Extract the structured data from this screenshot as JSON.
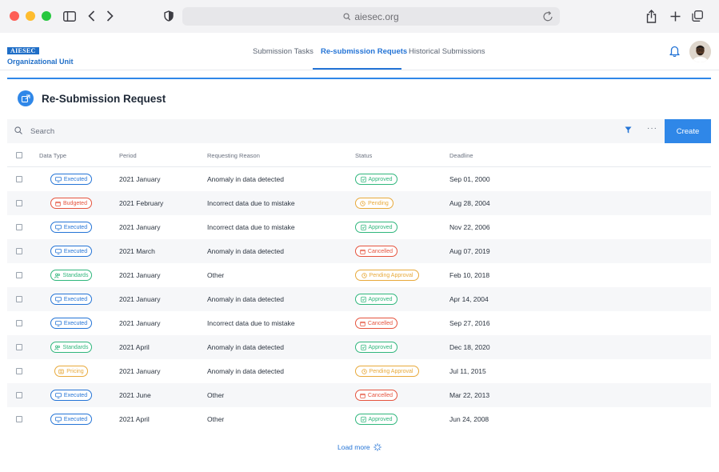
{
  "browser": {
    "url": "aiesec.org",
    "icons": [
      "sidebar-icon",
      "back-icon",
      "forward-icon",
      "shield-icon",
      "lock-icon",
      "reload-icon",
      "share-icon",
      "new-tab-icon",
      "tabs-icon"
    ]
  },
  "header": {
    "logo_badge": "AIESEC",
    "logo_sub": "Organizational Unit",
    "tabs": [
      {
        "label": "Submission Tasks",
        "active": false
      },
      {
        "label": "Re-submission Requets",
        "active": true
      },
      {
        "label": "Historical Submissions",
        "active": false
      }
    ]
  },
  "main": {
    "title": "Re-Submission Request",
    "search_placeholder": "Search",
    "create_label": "Create",
    "load_more_label": "Load more",
    "columns": [
      "Data Type",
      "Period",
      "Requesting Reason",
      "Status",
      "Deadline"
    ],
    "rows": [
      {
        "type": "Executed",
        "period": "2021 January",
        "reason": "Anomaly in data detected",
        "status": "Approved",
        "deadline": "Sep 01, 2000"
      },
      {
        "type": "Budgeted",
        "period": "2021 February",
        "reason": "Incorrect data due to mistake",
        "status": "Pending",
        "deadline": "Aug 28, 2004"
      },
      {
        "type": "Executed",
        "period": "2021 January",
        "reason": "Incorrect data due to mistake",
        "status": "Approved",
        "deadline": "Nov 22, 2006"
      },
      {
        "type": "Executed",
        "period": "2021 March",
        "reason": "Anomaly in data detected",
        "status": "Cancelled",
        "deadline": "Aug 07, 2019"
      },
      {
        "type": "Standards",
        "period": "2021 January",
        "reason": "Other",
        "status": "Pending Approval",
        "deadline": "Feb 10, 2018"
      },
      {
        "type": "Executed",
        "period": "2021 January",
        "reason": "Anomaly in data detected",
        "status": "Approved",
        "deadline": "Apr 14, 2004"
      },
      {
        "type": "Executed",
        "period": "2021 January",
        "reason": "Incorrect data due to mistake",
        "status": "Cancelled",
        "deadline": "Sep 27, 2016"
      },
      {
        "type": "Standards",
        "period": "2021 April",
        "reason": "Anomaly in data detected",
        "status": "Approved",
        "deadline": "Dec 18, 2020"
      },
      {
        "type": "Pricing",
        "period": "2021 January",
        "reason": "Anomaly in data detected",
        "status": "Pending Approval",
        "deadline": "Jul 11, 2015"
      },
      {
        "type": "Executed",
        "period": "2021 June",
        "reason": "Other",
        "status": "Cancelled",
        "deadline": "Mar 22, 2013"
      },
      {
        "type": "Executed",
        "period": "2021 April",
        "reason": "Other",
        "status": "Approved",
        "deadline": "Jun 24, 2008"
      }
    ]
  },
  "colors": {
    "accent": "#2474d6",
    "executed": "#2474d6",
    "budgeted": "#e5533d",
    "standards": "#2fb67c",
    "pricing": "#e8a93a",
    "approved": "#2fb67c",
    "pending": "#e8a93a",
    "cancelled": "#e5533d"
  }
}
